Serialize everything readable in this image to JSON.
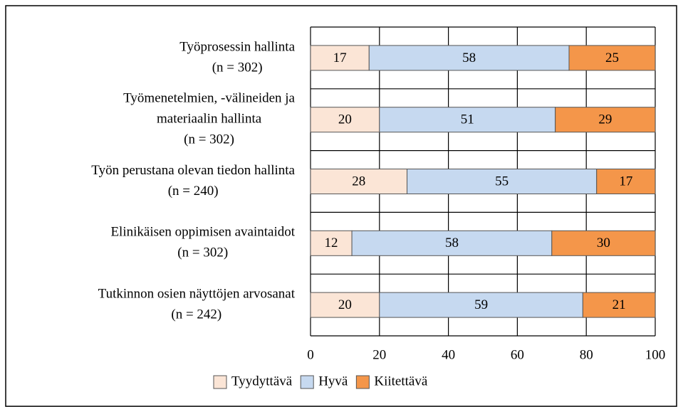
{
  "chart_data": {
    "type": "stacked-barh",
    "categories": [
      [
        "Työprosessin hallinta",
        "(n = 302)"
      ],
      [
        "Työmenetelmien, -välineiden ja",
        "materiaalin hallinta",
        "(n = 302)"
      ],
      [
        "Työn perustana olevan tiedon hallinta",
        "(n = 240)"
      ],
      [
        "Elinikäisen oppimisen avaintaidot",
        "(n = 302)"
      ],
      [
        "Tutkinnon osien näyttöjen arvosanat",
        "(n = 242)"
      ]
    ],
    "series": [
      {
        "name": "Tyydyttävä",
        "color": "#fbe5d6",
        "values": [
          17,
          20,
          28,
          12,
          20
        ]
      },
      {
        "name": "Hyvä",
        "color": "#c6d9f0",
        "values": [
          58,
          51,
          55,
          58,
          59
        ]
      },
      {
        "name": "Kiitettävä",
        "color": "#f4964a",
        "values": [
          25,
          29,
          17,
          30,
          21
        ]
      }
    ],
    "xlim": [
      0,
      100
    ],
    "xticks": [
      0,
      20,
      40,
      60,
      80,
      100
    ],
    "grid": true,
    "legend": "bottom"
  }
}
